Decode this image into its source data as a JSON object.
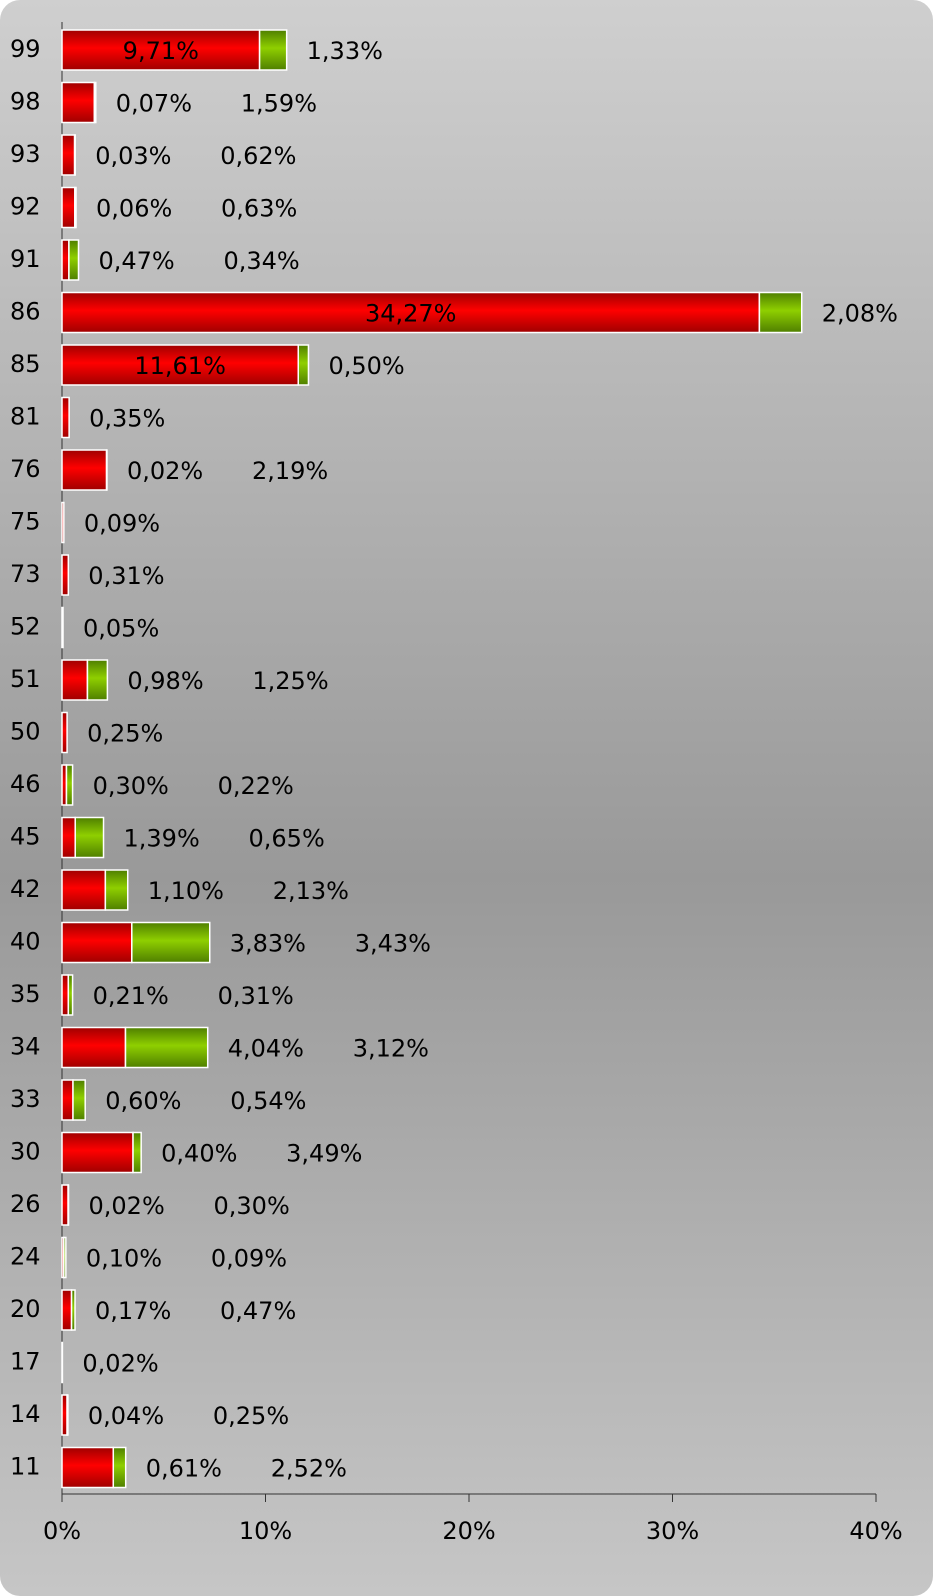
{
  "chart_data": {
    "type": "stacked-barh",
    "categories": [
      "99",
      "98",
      "93",
      "92",
      "91",
      "86",
      "85",
      "81",
      "76",
      "75",
      "73",
      "52",
      "51",
      "50",
      "46",
      "45",
      "42",
      "40",
      "35",
      "34",
      "33",
      "30",
      "26",
      "24",
      "20",
      "17",
      "14",
      "11"
    ],
    "series": [
      {
        "color": "#ff0000",
        "values": [
          9.71,
          1.59,
          0.62,
          0.63,
          0.34,
          34.27,
          11.61,
          0.35,
          2.19,
          0.09,
          0.31,
          0.05,
          1.25,
          0.25,
          0.22,
          0.65,
          2.13,
          3.43,
          0.31,
          3.12,
          0.54,
          3.49,
          0.3,
          0.09,
          0.47,
          0.02,
          0.25,
          2.52
        ],
        "value_labels": [
          "9,71%",
          "1,59%",
          "0,62%",
          "0,63%",
          "0,34%",
          "34,27%",
          "11,61%",
          "0,35%",
          "2,19%",
          "0,09%",
          "0,31%",
          "0,05%",
          "1,25%",
          "0,25%",
          "0,22%",
          "0,65%",
          "2,13%",
          "3,43%",
          "0,31%",
          "3,12%",
          "0,54%",
          "3,49%",
          "0,30%",
          "0,09%",
          "0,47%",
          "0,02%",
          "0,25%",
          "2,52%"
        ]
      },
      {
        "color": "#7fbf00",
        "values": [
          1.33,
          0.07,
          0.03,
          0.06,
          0.47,
          2.08,
          0.5,
          null,
          0.02,
          null,
          null,
          null,
          0.98,
          null,
          0.3,
          1.39,
          1.1,
          3.83,
          0.21,
          4.04,
          0.6,
          0.4,
          0.02,
          0.1,
          0.17,
          null,
          0.04,
          0.61
        ],
        "value_labels": [
          "1,33%",
          "0,07%",
          "0,03%",
          "0,06%",
          "0,47%",
          "2,08%",
          "0,50%",
          null,
          "0,02%",
          null,
          null,
          null,
          "0,98%",
          null,
          "0,30%",
          "1,39%",
          "1,10%",
          "3,83%",
          "0,21%",
          "4,04%",
          "0,60%",
          "0,40%",
          "0,02%",
          "0,10%",
          "0,17%",
          null,
          "0,04%",
          "0,61%"
        ]
      }
    ],
    "xlim": [
      0,
      40
    ],
    "xticks": [
      {
        "value": 0,
        "label": "0%"
      },
      {
        "value": 10,
        "label": "10%"
      },
      {
        "value": 20,
        "label": "20%"
      },
      {
        "value": 30,
        "label": "30%"
      },
      {
        "value": 40,
        "label": "40%"
      }
    ]
  }
}
